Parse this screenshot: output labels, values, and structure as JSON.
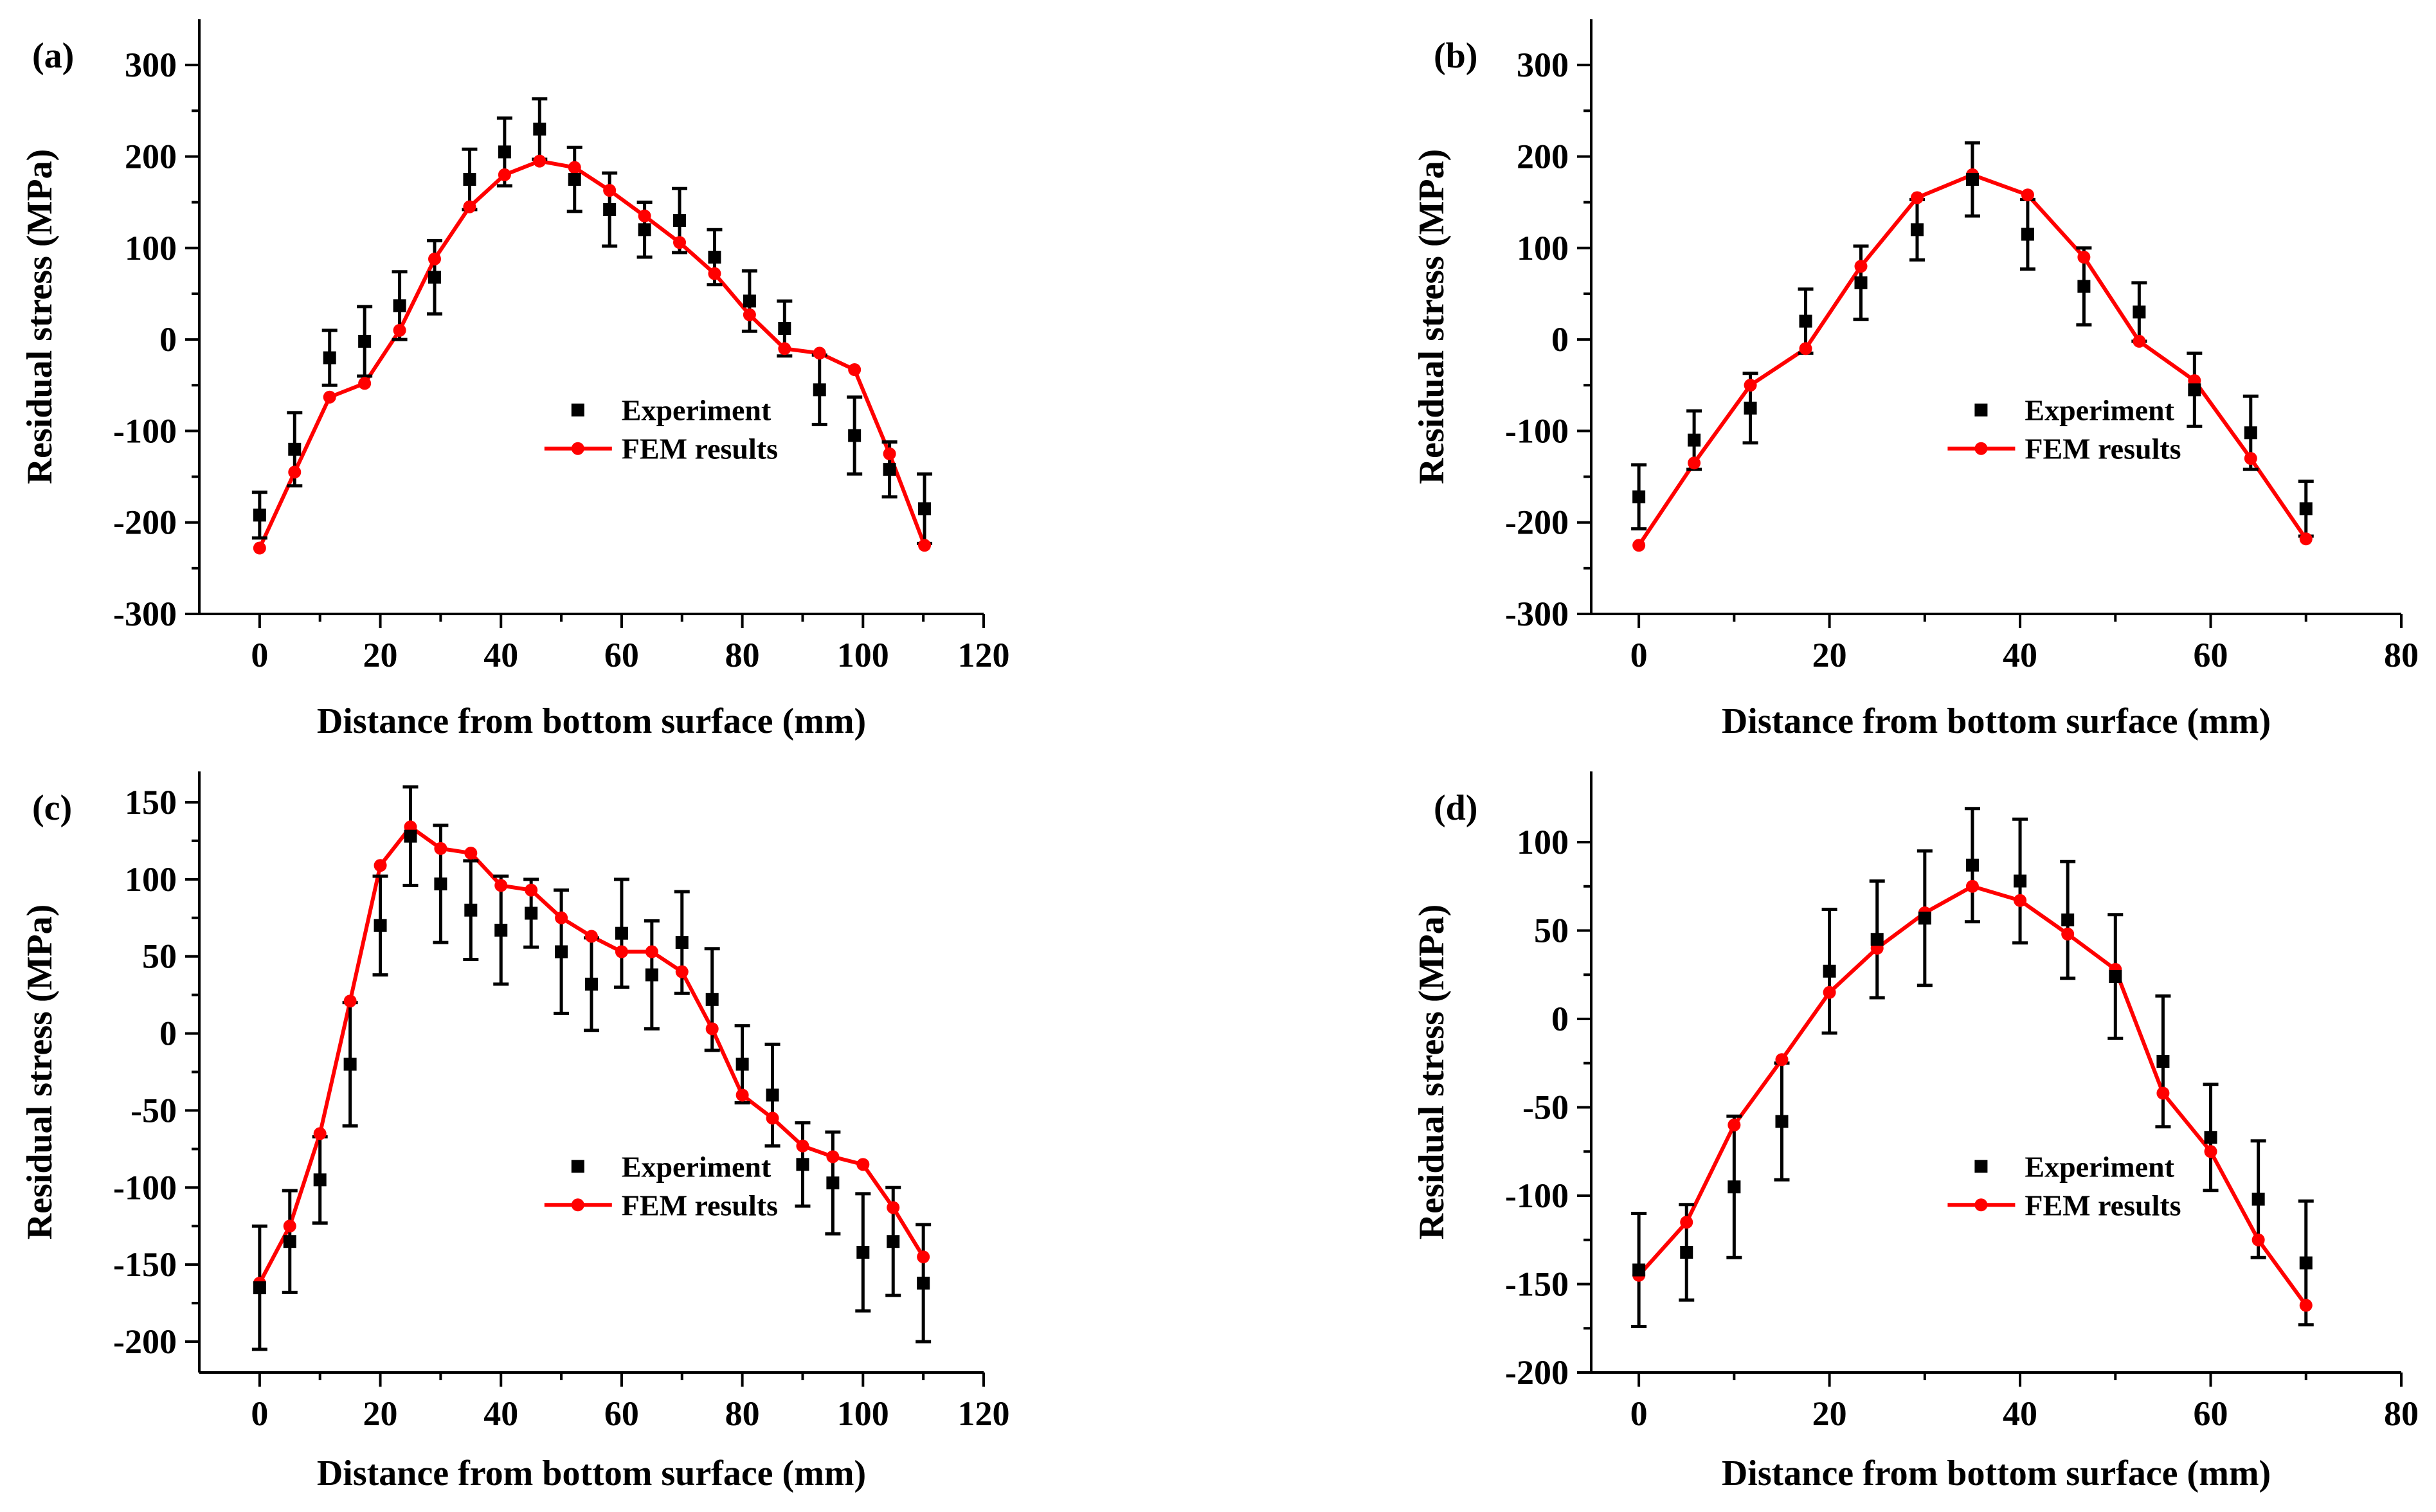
{
  "colors": {
    "experiment": "#000000",
    "fem": "#ff0000",
    "axis": "#000000"
  },
  "chart_data": [
    {
      "panel": "(a)",
      "type": "scatter+line",
      "xlabel": "Distance from bottom surface (mm)",
      "ylabel": "Residual stress (MPa)",
      "xlim": [
        -10,
        120
      ],
      "ylim": [
        -300,
        350
      ],
      "xticks": [
        0,
        20,
        40,
        60,
        80,
        100,
        120
      ],
      "yticks": [
        -300,
        -200,
        -100,
        0,
        100,
        200,
        300
      ],
      "legend": [
        "Experiment",
        "FEM results"
      ],
      "experiment": {
        "x": [
          0,
          5.8,
          11.6,
          17.4,
          23.2,
          29,
          34.8,
          40.6,
          46.4,
          52.2,
          58,
          63.8,
          69.6,
          75.4,
          81.2,
          87,
          92.8,
          98.6,
          104.4,
          110.2
        ],
        "y": [
          -192,
          -120,
          -20,
          -2,
          37,
          68,
          175,
          205,
          230,
          175,
          142,
          120,
          130,
          90,
          42,
          12,
          -55,
          -105,
          -142,
          -185
        ],
        "err": [
          25,
          40,
          30,
          38,
          37,
          40,
          33,
          37,
          33,
          35,
          40,
          30,
          35,
          30,
          33,
          30,
          38,
          42,
          30,
          38
        ]
      },
      "fem": {
        "x": [
          0,
          5.8,
          11.6,
          17.4,
          23.2,
          29,
          34.8,
          40.6,
          46.4,
          52.2,
          58,
          63.8,
          69.6,
          75.4,
          81.2,
          87,
          92.8,
          98.6,
          104.4,
          110.2
        ],
        "y": [
          -228,
          -145,
          -63,
          -48,
          10,
          88,
          145,
          180,
          195,
          188,
          163,
          135,
          106,
          72,
          27,
          -10,
          -15,
          -33,
          -125,
          -225
        ]
      }
    },
    {
      "panel": "(b)",
      "type": "scatter+line",
      "xlabel": "Distance from bottom surface (mm)",
      "ylabel": "Residual stress (MPa)",
      "xlim": [
        -5,
        80
      ],
      "ylim": [
        -300,
        350
      ],
      "xticks": [
        0,
        20,
        40,
        60,
        80
      ],
      "yticks": [
        -300,
        -200,
        -100,
        0,
        100,
        200,
        300
      ],
      "legend": [
        "Experiment",
        "FEM results"
      ],
      "experiment": {
        "x": [
          0,
          5.8,
          11.7,
          17.5,
          23.3,
          29.2,
          35,
          40.8,
          46.7,
          52.5,
          58.3,
          64.2,
          70
        ],
        "y": [
          -172,
          -110,
          -75,
          20,
          62,
          120,
          175,
          115,
          58,
          30,
          -55,
          -102,
          -185
        ],
        "err": [
          35,
          32,
          38,
          35,
          40,
          33,
          40,
          38,
          42,
          32,
          40,
          40,
          30
        ]
      },
      "fem": {
        "x": [
          0,
          5.8,
          11.7,
          17.5,
          23.3,
          29.2,
          35,
          40.8,
          46.7,
          52.5,
          58.3,
          64.2,
          70
        ],
        "y": [
          -225,
          -135,
          -50,
          -10,
          80,
          155,
          180,
          158,
          90,
          -2,
          -45,
          -130,
          -218
        ]
      }
    },
    {
      "panel": "(c)",
      "type": "scatter+line",
      "xlabel": "Distance from bottom surface (mm)",
      "ylabel": "Residual stress (MPa)",
      "xlim": [
        -10,
        120
      ],
      "ylim": [
        -220,
        170
      ],
      "xticks": [
        0,
        20,
        40,
        60,
        80,
        100,
        120
      ],
      "yticks": [
        -200,
        -150,
        -100,
        -50,
        0,
        50,
        100,
        150
      ],
      "legend": [
        "Experiment",
        "FEM results"
      ],
      "experiment": {
        "x": [
          0,
          5,
          10,
          15,
          20,
          25,
          30,
          35,
          40,
          45,
          50,
          55,
          60,
          65,
          70,
          75,
          80,
          85,
          90,
          95,
          100,
          105,
          110
        ],
        "y": [
          -165,
          -135,
          -95,
          -20,
          70,
          128,
          97,
          80,
          67,
          78,
          53,
          32,
          65,
          38,
          59,
          22,
          -20,
          -40,
          -85,
          -97,
          -142,
          -135,
          -162
        ],
        "err": [
          40,
          33,
          28,
          40,
          32,
          32,
          38,
          32,
          35,
          22,
          40,
          30,
          35,
          35,
          33,
          33,
          25,
          33,
          27,
          33,
          38,
          35,
          38
        ]
      },
      "fem": {
        "x": [
          0,
          5,
          10,
          15,
          20,
          25,
          30,
          35,
          40,
          45,
          50,
          55,
          60,
          65,
          70,
          75,
          80,
          85,
          90,
          95,
          100,
          105,
          110
        ],
        "y": [
          -162,
          -125,
          -65,
          21,
          109,
          134,
          120,
          117,
          96,
          93,
          75,
          63,
          53,
          53,
          40,
          3,
          -40,
          -55,
          -73,
          -80,
          -85,
          -113,
          -145
        ]
      }
    },
    {
      "panel": "(d)",
      "type": "scatter+line",
      "xlabel": "Distance from bottom surface (mm)",
      "ylabel": "Residual stress (MPa)",
      "xlim": [
        -5,
        80
      ],
      "ylim": [
        -200,
        140
      ],
      "xticks": [
        0,
        20,
        40,
        60,
        80
      ],
      "yticks": [
        -200,
        -150,
        -100,
        -50,
        0,
        50,
        100
      ],
      "legend": [
        "Experiment",
        "FEM results"
      ],
      "experiment": {
        "x": [
          0,
          5,
          10,
          15,
          20,
          25,
          30,
          35,
          40,
          45,
          50,
          55,
          60,
          65,
          70
        ],
        "y": [
          -142,
          -132,
          -95,
          -58,
          27,
          45,
          57,
          87,
          78,
          56,
          24,
          -24,
          -67,
          -102,
          -138
        ],
        "err": [
          32,
          27,
          40,
          33,
          35,
          33,
          38,
          32,
          35,
          33,
          35,
          37,
          30,
          33,
          35
        ]
      },
      "fem": {
        "x": [
          0,
          5,
          10,
          15,
          20,
          25,
          30,
          35,
          40,
          45,
          50,
          55,
          60,
          65,
          70
        ],
        "y": [
          -145,
          -115,
          -60,
          -23,
          15,
          40,
          60,
          75,
          67,
          48,
          28,
          -42,
          -75,
          -125,
          -162
        ]
      }
    }
  ]
}
